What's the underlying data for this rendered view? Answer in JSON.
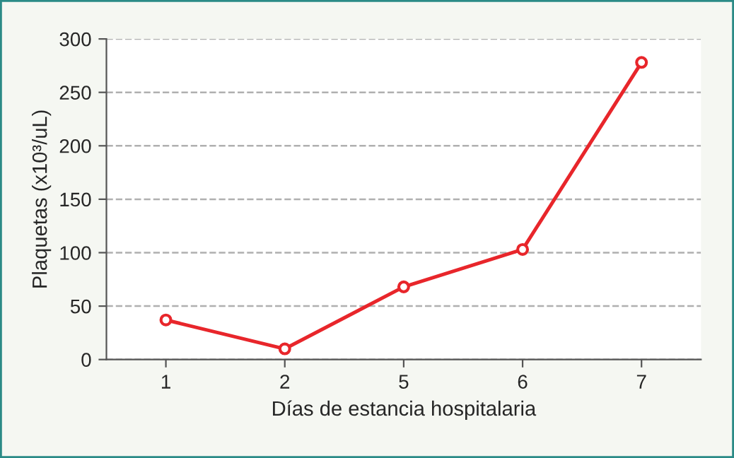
{
  "chart_data": {
    "type": "line",
    "xlabel": "Días de estancia hospitalaria",
    "ylabel": "Plaquetas (x10³/uL)",
    "categories": [
      "1",
      "2",
      "5",
      "6",
      "7"
    ],
    "series": [
      {
        "color": "#e8262b",
        "values": [
          37,
          10,
          68,
          103,
          278
        ]
      }
    ],
    "ylim": [
      0,
      300
    ],
    "yticks": [
      0,
      50,
      100,
      150,
      200,
      250,
      300
    ],
    "grid": "y",
    "marker": "circle",
    "line_style": "solid"
  }
}
